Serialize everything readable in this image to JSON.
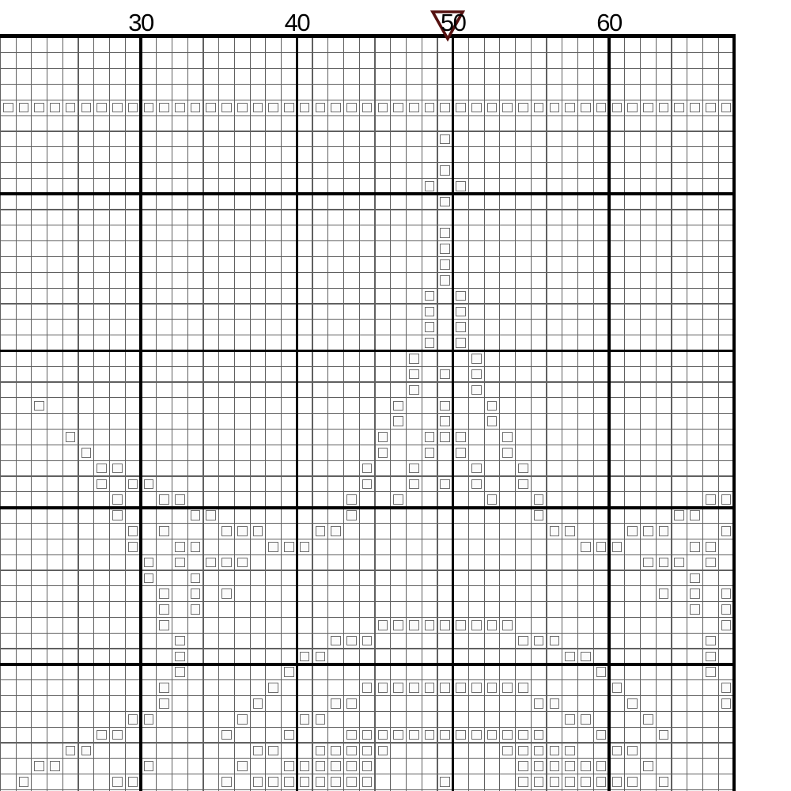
{
  "chart": {
    "title": "cross-stitch pattern grid",
    "column_labels": [
      {
        "value": "30",
        "col": 30
      },
      {
        "value": "40",
        "col": 40
      },
      {
        "value": "50",
        "col": 50
      },
      {
        "value": "60",
        "col": 60
      }
    ],
    "center_marker": {
      "col": 50,
      "shape": "inverted-triangle",
      "stroke_color": "#551110",
      "fill_color": "#ffffff"
    },
    "grid": {
      "first_col": 21,
      "last_col": 68,
      "rows": 48,
      "bold_every": 10,
      "right_border_col": 68,
      "thin_line_color": "#606060",
      "bold_line_color": "#000000",
      "square_outline_color": "#6e6e6e",
      "square_fill_color": "#fbfbfb"
    },
    "stitch_symbol": "open-square",
    "stitch_runs": [
      [
        5,
        21,
        68
      ],
      [
        7,
        50,
        50
      ],
      [
        9,
        50,
        50
      ],
      [
        10,
        49,
        49
      ],
      [
        10,
        51,
        51
      ],
      [
        11,
        50,
        50
      ],
      [
        13,
        50,
        50
      ],
      [
        14,
        50,
        50
      ],
      [
        15,
        50,
        50
      ],
      [
        16,
        50,
        50
      ],
      [
        17,
        49,
        49
      ],
      [
        17,
        51,
        51
      ],
      [
        18,
        49,
        49
      ],
      [
        18,
        51,
        51
      ],
      [
        19,
        49,
        49
      ],
      [
        19,
        51,
        51
      ],
      [
        20,
        49,
        49
      ],
      [
        20,
        51,
        51
      ],
      [
        21,
        48,
        48
      ],
      [
        21,
        52,
        52
      ],
      [
        22,
        48,
        48
      ],
      [
        22,
        50,
        50
      ],
      [
        22,
        52,
        52
      ],
      [
        23,
        48,
        48
      ],
      [
        23,
        52,
        52
      ],
      [
        24,
        24,
        24
      ],
      [
        24,
        47,
        47
      ],
      [
        24,
        50,
        50
      ],
      [
        24,
        53,
        53
      ],
      [
        25,
        47,
        47
      ],
      [
        25,
        50,
        50
      ],
      [
        25,
        53,
        53
      ],
      [
        26,
        26,
        26
      ],
      [
        26,
        46,
        46
      ],
      [
        26,
        49,
        51
      ],
      [
        26,
        54,
        54
      ],
      [
        27,
        27,
        27
      ],
      [
        27,
        46,
        46
      ],
      [
        27,
        49,
        49
      ],
      [
        27,
        51,
        51
      ],
      [
        27,
        54,
        54
      ],
      [
        28,
        28,
        29
      ],
      [
        28,
        45,
        45
      ],
      [
        28,
        48,
        48
      ],
      [
        28,
        52,
        52
      ],
      [
        28,
        55,
        55
      ],
      [
        29,
        28,
        28
      ],
      [
        29,
        30,
        31
      ],
      [
        29,
        45,
        45
      ],
      [
        29,
        48,
        48
      ],
      [
        29,
        50,
        50
      ],
      [
        29,
        52,
        52
      ],
      [
        29,
        55,
        55
      ],
      [
        30,
        29,
        29
      ],
      [
        30,
        32,
        33
      ],
      [
        30,
        44,
        44
      ],
      [
        30,
        47,
        47
      ],
      [
        30,
        53,
        53
      ],
      [
        30,
        56,
        56
      ],
      [
        30,
        67,
        68
      ],
      [
        31,
        29,
        29
      ],
      [
        31,
        34,
        35
      ],
      [
        31,
        44,
        44
      ],
      [
        31,
        56,
        56
      ],
      [
        31,
        65,
        66
      ],
      [
        32,
        30,
        30
      ],
      [
        32,
        32,
        32
      ],
      [
        32,
        36,
        38
      ],
      [
        32,
        42,
        43
      ],
      [
        32,
        57,
        58
      ],
      [
        32,
        62,
        64
      ],
      [
        32,
        68,
        68
      ],
      [
        33,
        30,
        30
      ],
      [
        33,
        33,
        34
      ],
      [
        33,
        39,
        41
      ],
      [
        33,
        59,
        61
      ],
      [
        33,
        66,
        67
      ],
      [
        34,
        31,
        31
      ],
      [
        34,
        33,
        33
      ],
      [
        34,
        35,
        37
      ],
      [
        34,
        63,
        65
      ],
      [
        34,
        67,
        67
      ],
      [
        35,
        31,
        31
      ],
      [
        35,
        34,
        34
      ],
      [
        35,
        66,
        66
      ],
      [
        36,
        32,
        32
      ],
      [
        36,
        34,
        34
      ],
      [
        36,
        36,
        36
      ],
      [
        36,
        64,
        64
      ],
      [
        36,
        66,
        66
      ],
      [
        36,
        68,
        68
      ],
      [
        37,
        32,
        32
      ],
      [
        37,
        34,
        34
      ],
      [
        37,
        66,
        66
      ],
      [
        37,
        68,
        68
      ],
      [
        38,
        32,
        32
      ],
      [
        38,
        46,
        54
      ],
      [
        38,
        68,
        68
      ],
      [
        39,
        33,
        33
      ],
      [
        39,
        43,
        45
      ],
      [
        39,
        55,
        57
      ],
      [
        39,
        67,
        67
      ],
      [
        40,
        33,
        33
      ],
      [
        40,
        41,
        42
      ],
      [
        40,
        58,
        59
      ],
      [
        40,
        67,
        67
      ],
      [
        41,
        33,
        33
      ],
      [
        41,
        40,
        40
      ],
      [
        41,
        60,
        60
      ],
      [
        41,
        67,
        67
      ],
      [
        42,
        32,
        32
      ],
      [
        42,
        39,
        39
      ],
      [
        42,
        45,
        55
      ],
      [
        42,
        61,
        61
      ],
      [
        42,
        68,
        68
      ],
      [
        43,
        32,
        32
      ],
      [
        43,
        38,
        38
      ],
      [
        43,
        43,
        44
      ],
      [
        43,
        56,
        57
      ],
      [
        43,
        62,
        62
      ],
      [
        43,
        68,
        68
      ],
      [
        44,
        30,
        31
      ],
      [
        44,
        37,
        37
      ],
      [
        44,
        41,
        42
      ],
      [
        44,
        58,
        59
      ],
      [
        44,
        63,
        63
      ],
      [
        45,
        28,
        29
      ],
      [
        45,
        36,
        36
      ],
      [
        45,
        40,
        40
      ],
      [
        45,
        44,
        56
      ],
      [
        45,
        60,
        60
      ],
      [
        45,
        64,
        64
      ],
      [
        46,
        26,
        27
      ],
      [
        46,
        38,
        39
      ],
      [
        46,
        42,
        46
      ],
      [
        46,
        54,
        58
      ],
      [
        46,
        61,
        62
      ],
      [
        47,
        24,
        25
      ],
      [
        47,
        31,
        31
      ],
      [
        47,
        37,
        37
      ],
      [
        47,
        40,
        45
      ],
      [
        47,
        55,
        60
      ],
      [
        47,
        63,
        63
      ],
      [
        48,
        21,
        21
      ],
      [
        48,
        23,
        23
      ],
      [
        48,
        29,
        30
      ],
      [
        48,
        36,
        36
      ],
      [
        48,
        38,
        45
      ],
      [
        48,
        50,
        50
      ],
      [
        48,
        55,
        62
      ],
      [
        48,
        64,
        64
      ]
    ]
  }
}
